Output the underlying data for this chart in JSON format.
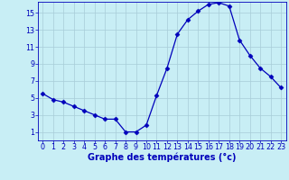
{
  "hours": [
    0,
    1,
    2,
    3,
    4,
    5,
    6,
    7,
    8,
    9,
    10,
    11,
    12,
    13,
    14,
    15,
    16,
    17,
    18,
    19,
    20,
    21,
    22,
    23
  ],
  "temps": [
    5.5,
    4.8,
    4.5,
    4.0,
    3.5,
    3.0,
    2.5,
    2.5,
    1.0,
    1.0,
    1.8,
    5.3,
    8.5,
    12.5,
    14.2,
    15.2,
    16.0,
    16.2,
    15.8,
    11.8,
    10.0,
    8.5,
    7.5,
    6.2
  ],
  "line_color": "#0000bb",
  "marker": "D",
  "marker_size": 2.5,
  "bg_color": "#c8eef5",
  "grid_color": "#a8ccd8",
  "axes_color": "#0000bb",
  "xlabel": "Graphe des températures (°c)",
  "ylim": [
    0,
    16
  ],
  "yticks": [
    1,
    3,
    5,
    7,
    9,
    11,
    13,
    15
  ],
  "xlim": [
    -0.5,
    23.5
  ],
  "xticks": [
    0,
    1,
    2,
    3,
    4,
    5,
    6,
    7,
    8,
    9,
    10,
    11,
    12,
    13,
    14,
    15,
    16,
    17,
    18,
    19,
    20,
    21,
    22,
    23
  ],
  "tick_fontsize": 5.8,
  "label_fontsize": 7.0
}
